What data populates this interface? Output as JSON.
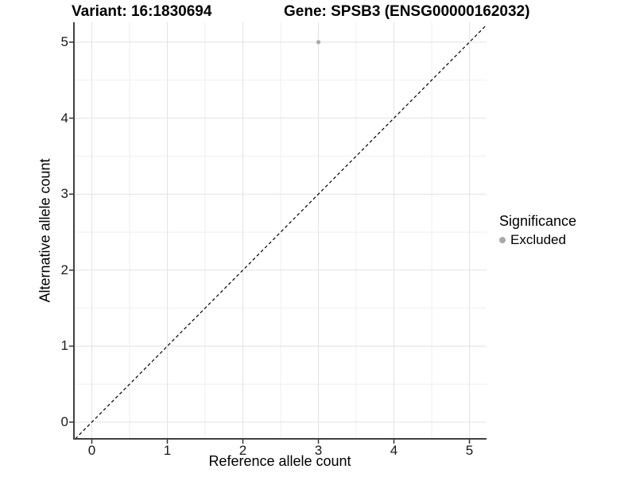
{
  "header": {
    "variant_title": "Variant: 16:1830694",
    "gene_title": "Gene: SPSB3 (ENSG00000162032)"
  },
  "axes": {
    "x_label": "Reference allele count",
    "y_label": "Alternative allele count",
    "x_ticks": [
      "0",
      "1",
      "2",
      "3",
      "4",
      "5"
    ],
    "y_ticks": [
      "0",
      "1",
      "2",
      "3",
      "4",
      "5"
    ]
  },
  "legend": {
    "title": "Significance",
    "items": [
      {
        "label": "Excluded",
        "color": "#a8a8a8"
      }
    ]
  },
  "colors": {
    "point": "#a8a8a8",
    "grid_major": "#e3e3e3",
    "grid_minor": "#efefef",
    "axis_line": "#404040",
    "tick_mark": "#333333",
    "reference_line": "#000000"
  },
  "chart_data": {
    "type": "scatter",
    "title": "Variant: 16:1830694 | Gene: SPSB3 (ENSG00000162032)",
    "xlabel": "Reference allele count",
    "ylabel": "Alternative allele count",
    "xlim": [
      -0.25,
      5.25
    ],
    "ylim": [
      -0.25,
      5.25
    ],
    "x_tick_values": [
      0,
      1,
      2,
      3,
      4,
      5
    ],
    "y_tick_values": [
      0,
      1,
      2,
      3,
      4,
      5
    ],
    "minor_tick_values": [
      0.5,
      1.5,
      2.5,
      3.5,
      4.5
    ],
    "grid": "major+minor",
    "legend_position": "right",
    "series": [
      {
        "name": "Excluded",
        "color": "#a8a8a8",
        "points": [
          {
            "x": 3,
            "y": 5
          }
        ]
      }
    ],
    "reference_line": {
      "type": "identity (y = x)",
      "style": "dashed",
      "color": "#000000"
    }
  }
}
